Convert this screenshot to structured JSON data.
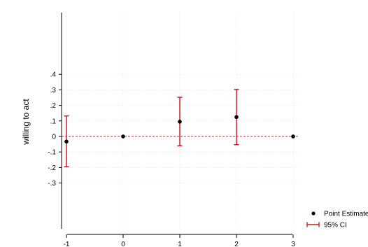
{
  "chart_data": {
    "type": "scatter",
    "ylabel": "willing to act",
    "xlabel": "",
    "x_ticks": [
      "-1",
      "0",
      "1",
      "2",
      "3"
    ],
    "y_ticks": [
      ".4",
      ".3",
      ".2",
      ".1",
      "0",
      "-.1",
      "-.2",
      "-.3"
    ],
    "x": [
      -1,
      0,
      1,
      2,
      3
    ],
    "point_estimates": [
      -0.033,
      0.0,
      0.095,
      0.125,
      0.0
    ],
    "ci_lower": [
      -0.195,
      null,
      -0.06,
      -0.053,
      null
    ],
    "ci_upper": [
      0.132,
      null,
      0.252,
      0.303,
      null
    ],
    "xlim": [
      -1.1,
      3.1
    ],
    "ylim": [
      -0.3,
      0.4
    ],
    "reference_line": {
      "y": 0,
      "style": "dashed",
      "color": "#e8242b"
    },
    "grid": true,
    "legend": {
      "placement": "bottom-right",
      "entries": [
        {
          "label": "Point Estimate",
          "marker": "dot"
        },
        {
          "label": "95% CI",
          "marker": "capped-line"
        }
      ]
    },
    "colors": {
      "point": "#000000",
      "ci": "#d01c22",
      "reference": "#e8242b",
      "grid": "#e6e6e6",
      "axis": "#000000"
    }
  }
}
